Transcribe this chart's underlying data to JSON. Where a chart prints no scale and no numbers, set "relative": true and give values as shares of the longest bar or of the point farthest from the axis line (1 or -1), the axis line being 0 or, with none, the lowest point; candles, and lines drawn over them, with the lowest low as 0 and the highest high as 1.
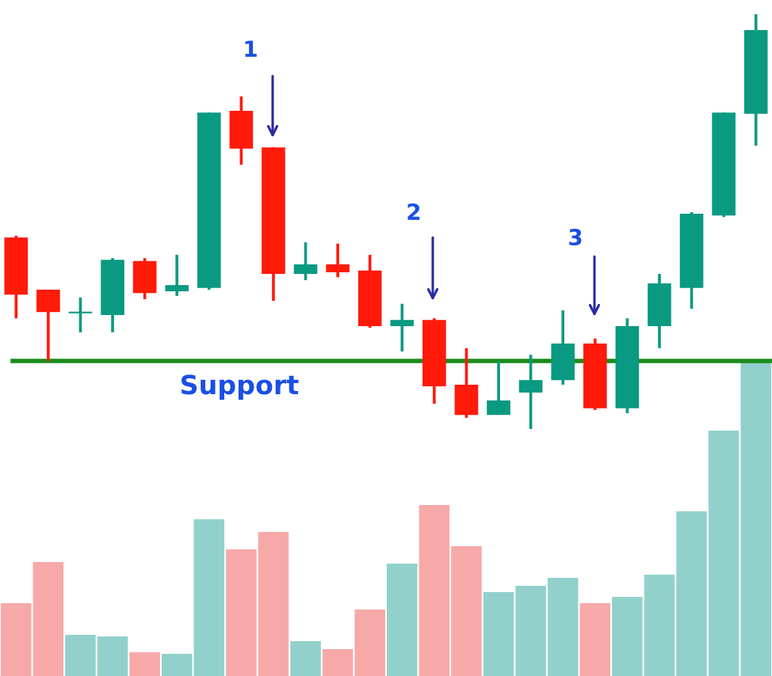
{
  "chart_data": [
    {
      "type": "candlestick",
      "relative": true,
      "categories": [
        null,
        null,
        null,
        null,
        null,
        null,
        null,
        null,
        null,
        null,
        null,
        null,
        null,
        null,
        null,
        null,
        null,
        null,
        null,
        null,
        null,
        null,
        null,
        null
      ],
      "ohlc": [
        [
          0.462,
          0.466,
          0.267,
          0.324
        ],
        [
          0.336,
          0.336,
          0.164,
          0.282
        ],
        [
          0.279,
          0.317,
          0.233,
          0.279
        ],
        [
          0.275,
          0.412,
          0.233,
          0.408
        ],
        [
          0.405,
          0.412,
          0.313,
          0.328
        ],
        [
          0.332,
          0.42,
          0.321,
          0.347
        ],
        [
          0.34,
          0.763,
          0.336,
          0.763
        ],
        [
          0.767,
          0.802,
          0.637,
          0.676
        ],
        [
          0.679,
          0.679,
          0.309,
          0.374
        ],
        [
          0.374,
          0.45,
          0.359,
          0.397
        ],
        [
          0.397,
          0.447,
          0.366,
          0.378
        ],
        [
          0.382,
          0.42,
          0.244,
          0.248
        ],
        [
          0.248,
          0.302,
          0.187,
          0.263
        ],
        [
          0.263,
          0.267,
          0.061,
          0.103
        ],
        [
          0.107,
          0.195,
          0.027,
          0.034
        ],
        [
          0.034,
          0.164,
          0.034,
          0.069
        ],
        [
          0.088,
          0.179,
          0,
          0.118
        ],
        [
          0.118,
          0.286,
          0.107,
          0.206
        ],
        [
          0.206,
          0.218,
          0.046,
          0.05
        ],
        [
          0.05,
          0.267,
          0.038,
          0.248
        ],
        [
          0.248,
          0.374,
          0.195,
          0.351
        ],
        [
          0.34,
          0.523,
          0.29,
          0.519
        ],
        [
          0.515,
          0.763,
          0.511,
          0.763
        ],
        [
          0.76,
          1,
          0.683,
          0.962
        ]
      ],
      "colors": [
        "#ff1a0a",
        "#ff1a0a",
        "#0a9981",
        "#0a9981",
        "#ff1a0a",
        "#0a9981",
        "#0a9981",
        "#ff1a0a",
        "#ff1a0a",
        "#0a9981",
        "#ff1a0a",
        "#ff1a0a",
        "#0a9981",
        "#ff1a0a",
        "#ff1a0a",
        "#0a9981",
        "#0a9981",
        "#0a9981",
        "#ff1a0a",
        "#0a9981",
        "#0a9981",
        "#0a9981",
        "#0a9981",
        "#0a9981"
      ],
      "ref_lines": [
        {
          "axis": "y",
          "value": 0.164,
          "label": "Support",
          "color": "#1a8c1a",
          "line_style": "solid"
        }
      ],
      "annotations": [
        "1",
        "2",
        "3"
      ]
    },
    {
      "type": "bar",
      "relative": true,
      "categories": [
        null,
        null,
        null,
        null,
        null,
        null,
        null,
        null,
        null,
        null,
        null,
        null,
        null,
        null,
        null,
        null,
        null,
        null,
        null,
        null,
        null,
        null,
        null,
        null
      ],
      "values": [
        0.23,
        0.36,
        0.13,
        0.125,
        0.075,
        0.07,
        0.495,
        0.4,
        0.455,
        0.11,
        0.085,
        0.21,
        0.355,
        0.54,
        0.41,
        0.265,
        0.285,
        0.31,
        0.23,
        0.25,
        0.32,
        0.52,
        0.775,
        1
      ],
      "colors": [
        "#f7a9a8",
        "#f7a9a8",
        "#92d1cb",
        "#92d1cb",
        "#f7a9a8",
        "#92d1cb",
        "#92d1cb",
        "#f7a9a8",
        "#f7a9a8",
        "#92d1cb",
        "#f7a9a8",
        "#f7a9a8",
        "#92d1cb",
        "#f7a9a8",
        "#f7a9a8",
        "#92d1cb",
        "#92d1cb",
        "#92d1cb",
        "#f7a9a8",
        "#92d1cb",
        "#92d1cb",
        "#92d1cb",
        "#92d1cb",
        "#92d1cb"
      ]
    }
  ]
}
